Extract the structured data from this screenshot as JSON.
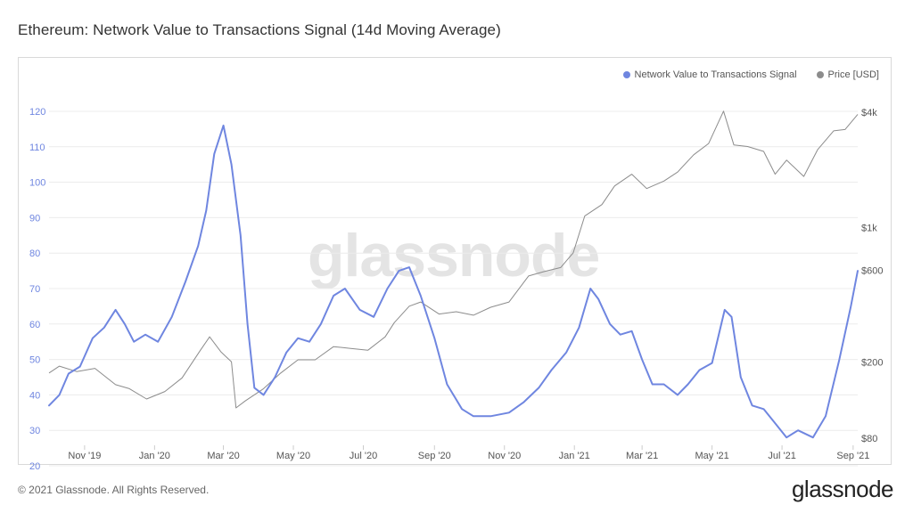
{
  "header": {
    "title": "Ethereum: Network Value to Transactions Signal (14d Moving Average)"
  },
  "footer": {
    "copyright": "© 2021 Glassnode. All Rights Reserved.",
    "brand": "glassnode"
  },
  "watermark": "glassnode",
  "colors": {
    "nvts": "#6f86e0",
    "price": "#8c8c8c",
    "left_axis": "#6f86e0"
  },
  "chart_data": {
    "type": "line",
    "title": "Ethereum: Network Value to Transactions Signal (14d Moving Average)",
    "legend": {
      "placement": "top-right"
    },
    "x_ticks": [
      "Nov '19",
      "Jan '20",
      "Mar '20",
      "May '20",
      "Jul '20",
      "Sep '20",
      "Nov '20",
      "Jan '21",
      "Mar '21",
      "May '21",
      "Jul '21",
      "Sep '21"
    ],
    "x_range": [
      "2019-10-01",
      "2021-09-05"
    ],
    "y_left": {
      "ticks": [
        20,
        30,
        40,
        50,
        60,
        70,
        80,
        90,
        100,
        110,
        120
      ],
      "range": [
        20,
        120
      ]
    },
    "y_right": {
      "scale": "log",
      "ticks": [
        80,
        200,
        600,
        1000,
        4000
      ],
      "tick_labels": [
        "$80",
        "$200",
        "$600",
        "$1k",
        "$4k"
      ],
      "range": [
        80,
        4000
      ]
    },
    "series": [
      {
        "name": "Network Value to Transactions Signal",
        "axis": "left",
        "points": [
          [
            "2019-10-01",
            37
          ],
          [
            "2019-10-10",
            40
          ],
          [
            "2019-10-18",
            46
          ],
          [
            "2019-10-28",
            48
          ],
          [
            "2019-11-08",
            56
          ],
          [
            "2019-11-18",
            59
          ],
          [
            "2019-11-28",
            64
          ],
          [
            "2019-12-06",
            60
          ],
          [
            "2019-12-14",
            55
          ],
          [
            "2019-12-24",
            57
          ],
          [
            "2020-01-04",
            55
          ],
          [
            "2020-01-16",
            62
          ],
          [
            "2020-01-28",
            72
          ],
          [
            "2020-02-08",
            82
          ],
          [
            "2020-02-15",
            92
          ],
          [
            "2020-02-22",
            108
          ],
          [
            "2020-03-01",
            116
          ],
          [
            "2020-03-08",
            105
          ],
          [
            "2020-03-16",
            85
          ],
          [
            "2020-03-22",
            60
          ],
          [
            "2020-03-28",
            42
          ],
          [
            "2020-04-05",
            40
          ],
          [
            "2020-04-15",
            45
          ],
          [
            "2020-04-25",
            52
          ],
          [
            "2020-05-05",
            56
          ],
          [
            "2020-05-15",
            55
          ],
          [
            "2020-05-25",
            60
          ],
          [
            "2020-06-05",
            68
          ],
          [
            "2020-06-15",
            70
          ],
          [
            "2020-06-28",
            64
          ],
          [
            "2020-07-10",
            62
          ],
          [
            "2020-07-22",
            70
          ],
          [
            "2020-08-01",
            75
          ],
          [
            "2020-08-10",
            76
          ],
          [
            "2020-08-20",
            68
          ],
          [
            "2020-09-01",
            56
          ],
          [
            "2020-09-12",
            43
          ],
          [
            "2020-09-25",
            36
          ],
          [
            "2020-10-05",
            34
          ],
          [
            "2020-10-20",
            34
          ],
          [
            "2020-11-05",
            35
          ],
          [
            "2020-11-18",
            38
          ],
          [
            "2020-12-01",
            42
          ],
          [
            "2020-12-12",
            47
          ],
          [
            "2020-12-25",
            52
          ],
          [
            "2021-01-05",
            59
          ],
          [
            "2021-01-15",
            70
          ],
          [
            "2021-01-22",
            67
          ],
          [
            "2021-02-01",
            60
          ],
          [
            "2021-02-10",
            57
          ],
          [
            "2021-02-20",
            58
          ],
          [
            "2021-03-01",
            50
          ],
          [
            "2021-03-10",
            43
          ],
          [
            "2021-03-20",
            43
          ],
          [
            "2021-04-01",
            40
          ],
          [
            "2021-04-10",
            43
          ],
          [
            "2021-04-20",
            47
          ],
          [
            "2021-05-01",
            49
          ],
          [
            "2021-05-12",
            64
          ],
          [
            "2021-05-18",
            62
          ],
          [
            "2021-05-26",
            45
          ],
          [
            "2021-06-05",
            37
          ],
          [
            "2021-06-15",
            36
          ],
          [
            "2021-06-25",
            32
          ],
          [
            "2021-07-05",
            28
          ],
          [
            "2021-07-15",
            30
          ],
          [
            "2021-07-28",
            28
          ],
          [
            "2021-08-08",
            34
          ],
          [
            "2021-08-20",
            50
          ],
          [
            "2021-08-30",
            65
          ],
          [
            "2021-09-05",
            75
          ]
        ]
      },
      {
        "name": "Price [USD]",
        "axis": "right",
        "points": [
          [
            "2019-10-01",
            175
          ],
          [
            "2019-10-10",
            190
          ],
          [
            "2019-10-25",
            178
          ],
          [
            "2019-11-10",
            185
          ],
          [
            "2019-11-28",
            152
          ],
          [
            "2019-12-10",
            145
          ],
          [
            "2019-12-25",
            128
          ],
          [
            "2020-01-10",
            140
          ],
          [
            "2020-01-25",
            165
          ],
          [
            "2020-02-10",
            230
          ],
          [
            "2020-02-18",
            270
          ],
          [
            "2020-02-28",
            225
          ],
          [
            "2020-03-08",
            200
          ],
          [
            "2020-03-12",
            115
          ],
          [
            "2020-03-20",
            125
          ],
          [
            "2020-04-05",
            145
          ],
          [
            "2020-04-20",
            175
          ],
          [
            "2020-05-05",
            205
          ],
          [
            "2020-05-20",
            205
          ],
          [
            "2020-06-05",
            240
          ],
          [
            "2020-06-20",
            235
          ],
          [
            "2020-07-05",
            230
          ],
          [
            "2020-07-20",
            270
          ],
          [
            "2020-07-28",
            320
          ],
          [
            "2020-08-10",
            390
          ],
          [
            "2020-08-20",
            410
          ],
          [
            "2020-09-05",
            355
          ],
          [
            "2020-09-20",
            365
          ],
          [
            "2020-10-05",
            350
          ],
          [
            "2020-10-20",
            385
          ],
          [
            "2020-11-05",
            410
          ],
          [
            "2020-11-22",
            560
          ],
          [
            "2020-12-05",
            590
          ],
          [
            "2020-12-20",
            620
          ],
          [
            "2020-12-31",
            740
          ],
          [
            "2021-01-10",
            1150
          ],
          [
            "2021-01-25",
            1320
          ],
          [
            "2021-02-05",
            1650
          ],
          [
            "2021-02-20",
            1900
          ],
          [
            "2021-03-05",
            1600
          ],
          [
            "2021-03-20",
            1750
          ],
          [
            "2021-04-01",
            1950
          ],
          [
            "2021-04-15",
            2400
          ],
          [
            "2021-04-28",
            2750
          ],
          [
            "2021-05-11",
            4050
          ],
          [
            "2021-05-20",
            2700
          ],
          [
            "2021-06-01",
            2650
          ],
          [
            "2021-06-15",
            2500
          ],
          [
            "2021-06-25",
            1900
          ],
          [
            "2021-07-05",
            2250
          ],
          [
            "2021-07-20",
            1850
          ],
          [
            "2021-08-01",
            2550
          ],
          [
            "2021-08-15",
            3200
          ],
          [
            "2021-08-25",
            3250
          ],
          [
            "2021-09-05",
            3900
          ]
        ]
      }
    ]
  }
}
